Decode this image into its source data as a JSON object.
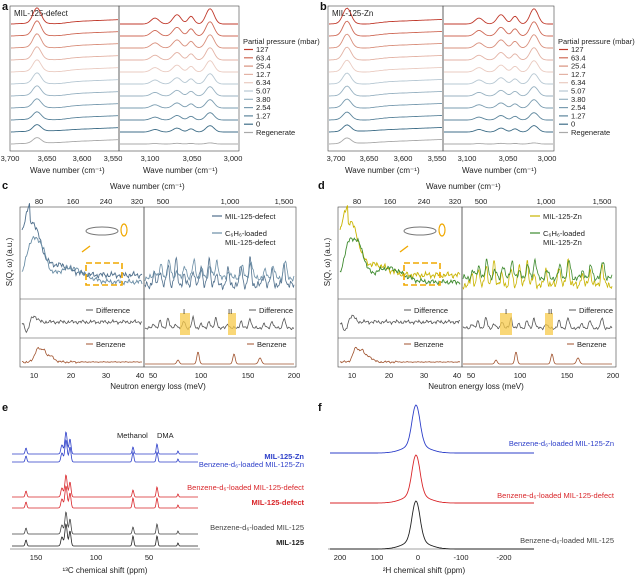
{
  "panels": {
    "a": {
      "letter": "a",
      "title": "MIL-125-defect"
    },
    "b": {
      "letter": "b",
      "title": "MIL-125-Zn"
    },
    "c": {
      "letter": "c"
    },
    "d": {
      "letter": "d"
    },
    "e": {
      "letter": "e"
    },
    "f": {
      "letter": "f"
    }
  },
  "pressure_legend": {
    "title": "Partial pressure (mbar)",
    "entries": [
      "127",
      "63.4",
      "25.4",
      "12.7",
      "6.34",
      "5.07",
      "3.80",
      "2.54",
      "1.27",
      "0",
      "Regenerate"
    ],
    "colors": [
      "#c0392b",
      "#cf6a57",
      "#d9907d",
      "#e3b2a4",
      "#eacbc1",
      "#b7c8d3",
      "#98b2c2",
      "#7a9cb0",
      "#5c859c",
      "#3f6e88",
      "#a9a9a9"
    ]
  },
  "ir_axes": {
    "left_ticks": [
      "3,700",
      "3,650",
      "3,600",
      "3,550"
    ],
    "right_ticks": [
      "3,100",
      "3,050",
      "3,000"
    ],
    "xlabel": "Wave number (cm⁻¹)"
  },
  "ins_axes": {
    "top_label": "Wave number (cm⁻¹)",
    "top_ticks_left": [
      "80",
      "160",
      "240",
      "320"
    ],
    "top_ticks_right": [
      "500",
      "1,000",
      "1,500"
    ],
    "bottom_ticks_left": [
      "10",
      "20",
      "30",
      "40"
    ],
    "bottom_ticks_right": [
      "50",
      "100",
      "150",
      "200"
    ],
    "xlabel": "Neutron energy loss (meV)",
    "ylabel": "S(Q, ω) (a.u.)",
    "difference": "Difference",
    "benzene": "Benzene",
    "region_I": "I",
    "region_II": "II"
  },
  "c_legend": {
    "s1": "MIL-125-defect",
    "s2a": "C₆H₆-loaded",
    "s2b": "MIL-125-defect"
  },
  "d_legend": {
    "s1": "MIL-125-Zn",
    "s2a": "C₆H₆-loaded",
    "s2b": "MIL-125-Zn"
  },
  "nmr_e": {
    "labels": [
      "Benzene-d₆-loaded MIL-125-Zn",
      "MIL-125-Zn",
      "Benzene-d₆-loaded MIL-125-defect",
      "MIL-125-defect",
      "Benzene-d₆-loaded MIL-125",
      "MIL-125"
    ],
    "annotations": [
      "Methanol",
      "DMA"
    ],
    "ticks": [
      "150",
      "100",
      "50"
    ],
    "xlabel": "¹³C chemical shift (ppm)"
  },
  "nmr_f": {
    "labels": [
      "Benzene-d₆-loaded MIL-125-Zn",
      "Benzene-d₆-loaded MIL-125-defect",
      "Benzene-d₆-loaded MIL-125"
    ],
    "ticks": [
      "200",
      "100",
      "0",
      "-100",
      "-200"
    ],
    "xlabel": "²H chemical shift (ppm)"
  },
  "colors": {
    "zn": "#2d3fc9",
    "defect": "#d9262a",
    "parent": "#222222",
    "c_s1": "#4f6f8c",
    "c_s2": "#6b8ea6",
    "d_s1": "#c9b400",
    "d_s2": "#3d8a2e",
    "diff": "#555555",
    "benzene": "#a0522d",
    "box": "#f0a800",
    "highlight": "#f7c94a"
  },
  "chart_data": [
    {
      "panel": "a",
      "type": "line",
      "title": "MIL-125-defect",
      "xlabel": "Wave number (cm⁻¹)",
      "x_ranges": [
        [
          3720,
          3500
        ],
        [
          3120,
          3000
        ]
      ],
      "series_names": [
        "127",
        "63.4",
        "25.4",
        "12.7",
        "6.34",
        "5.07",
        "3.80",
        "2.54",
        "1.27",
        "0",
        "Regenerate"
      ],
      "peaks_cm": [
        3672,
        3090,
        3070,
        3048,
        3035
      ]
    },
    {
      "panel": "b",
      "type": "line",
      "title": "MIL-125-Zn",
      "xlabel": "Wave number (cm⁻¹)",
      "x_ranges": [
        [
          3720,
          3500
        ],
        [
          3120,
          3000
        ]
      ],
      "series_names": [
        "127",
        "63.4",
        "25.4",
        "12.7",
        "6.34",
        "5.07",
        "3.80",
        "2.54",
        "1.27",
        "0",
        "Regenerate"
      ],
      "peaks_cm": [
        3675,
        3090,
        3070,
        3048,
        3035
      ]
    },
    {
      "panel": "c",
      "type": "line",
      "xlabel": "Neutron energy loss (meV)",
      "ylabel": "S(Q, ω) (a.u.)",
      "x_ranges_meV": [
        [
          0,
          40
        ],
        [
          40,
          200
        ]
      ],
      "highlight_regions_meV": [
        [
          78,
          84
        ],
        [
          133,
          138
        ]
      ]
    },
    {
      "panel": "d",
      "type": "line",
      "xlabel": "Neutron energy loss (meV)",
      "ylabel": "S(Q, ω) (a.u.)",
      "x_ranges_meV": [
        [
          0,
          40
        ],
        [
          40,
          200
        ]
      ],
      "highlight_regions_meV": [
        [
          78,
          84
        ],
        [
          133,
          138
        ]
      ]
    },
    {
      "panel": "e",
      "type": "line",
      "xlabel": "¹³C chemical shift (ppm)",
      "xlim": [
        180,
        0
      ],
      "peaks_ppm": [
        170,
        138,
        133,
        129,
        49,
        36
      ]
    },
    {
      "panel": "f",
      "type": "line",
      "xlabel": "²H chemical shift (ppm)",
      "xlim": [
        220,
        -230
      ],
      "peaks_ppm": [
        0
      ]
    }
  ]
}
